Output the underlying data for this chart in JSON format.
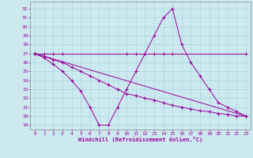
{
  "xlabel": "Windchill (Refroidissement éolien,°C)",
  "bg_color": "#cce9f0",
  "grid_color": "#b0d8e0",
  "line_color": "#990099",
  "xlim": [
    -0.5,
    23.5
  ],
  "ylim": [
    18.5,
    32.8
  ],
  "yticks": [
    19,
    20,
    21,
    22,
    23,
    24,
    25,
    26,
    27,
    28,
    29,
    30,
    31,
    32
  ],
  "xticks": [
    0,
    1,
    2,
    3,
    4,
    5,
    6,
    7,
    8,
    9,
    10,
    11,
    12,
    13,
    14,
    15,
    16,
    17,
    18,
    19,
    20,
    21,
    22,
    23
  ],
  "series": [
    {
      "x": [
        0,
        1,
        2,
        3,
        10,
        11,
        12,
        13,
        14,
        15,
        23
      ],
      "y": [
        27,
        27,
        27,
        27,
        27,
        27,
        27,
        27,
        27,
        27,
        27
      ]
    },
    {
      "x": [
        0,
        23
      ],
      "y": [
        27,
        20
      ]
    },
    {
      "x": [
        0,
        1,
        2,
        3,
        4,
        5,
        6,
        7,
        8,
        9,
        10,
        11,
        12,
        13,
        14,
        15,
        16,
        17,
        18,
        19,
        20,
        21,
        22,
        23
      ],
      "y": [
        27,
        26.5,
        25.8,
        25,
        24,
        22.8,
        21,
        19,
        19,
        21,
        23,
        25,
        27,
        29,
        31,
        32,
        28,
        26,
        24.5,
        23,
        21.5,
        21,
        20.5,
        20
      ]
    },
    {
      "x": [
        0,
        1,
        2,
        3,
        4,
        5,
        6,
        7,
        8,
        9,
        10,
        11,
        12,
        13,
        14,
        15,
        16,
        17,
        18,
        19,
        20,
        21,
        22,
        23
      ],
      "y": [
        27,
        26.7,
        26.3,
        26,
        25.5,
        25,
        24.5,
        24,
        23.5,
        23,
        22.5,
        22.3,
        22,
        21.8,
        21.5,
        21.2,
        21,
        20.8,
        20.6,
        20.5,
        20.3,
        20.2,
        20,
        20
      ]
    }
  ]
}
